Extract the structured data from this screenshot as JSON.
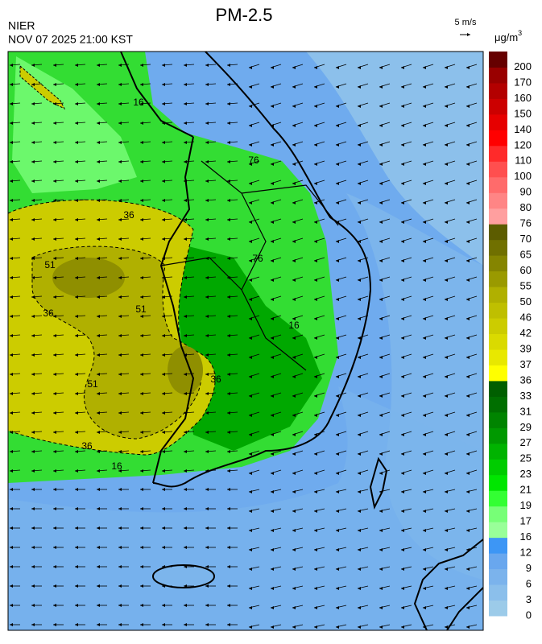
{
  "header": {
    "title": "PM-2.5",
    "agency": "NIER",
    "datetime": "NOV 07 2025 21:00 KST",
    "wind_scale": "5 m/s",
    "unit": "μg/m",
    "unit_exp": "3"
  },
  "contour_labels": [
    "51",
    "51",
    "51",
    "36",
    "36",
    "36",
    "36",
    "16",
    "16",
    "16",
    "76",
    "76"
  ],
  "colorbar": {
    "levels": [
      0,
      3,
      6,
      9,
      12,
      16,
      17,
      19,
      21,
      23,
      25,
      27,
      29,
      31,
      33,
      36,
      37,
      39,
      42,
      46,
      50,
      55,
      60,
      65,
      70,
      76,
      80,
      90,
      100,
      110,
      120,
      140,
      150,
      160,
      170,
      200
    ],
    "colors": [
      "#9ccbe9",
      "#8bbfeb",
      "#7bb3ec",
      "#69a7ee",
      "#3d96f5",
      "#99ff99",
      "#77ff77",
      "#33ff33",
      "#00e600",
      "#00cc00",
      "#00b300",
      "#009900",
      "#008400",
      "#006f00",
      "#005f00",
      "#ffff00",
      "#e8e800",
      "#dada00",
      "#cccc00",
      "#bfbf00",
      "#b0b000",
      "#9a9a00",
      "#858500",
      "#707000",
      "#5c5c00",
      "#ff9f9f",
      "#ff8585",
      "#ff6b6b",
      "#ff4f4f",
      "#ff2a2a",
      "#ff0000",
      "#e60000",
      "#cc0000",
      "#b30000",
      "#990000",
      "#660000"
    ]
  }
}
